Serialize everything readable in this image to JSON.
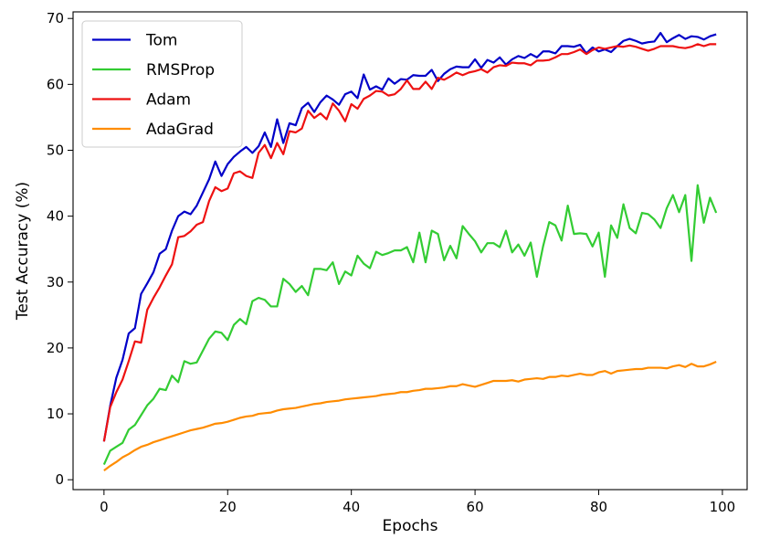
{
  "chart_data": {
    "type": "line",
    "title": "",
    "xlabel": "Epochs",
    "ylabel": "Test Accuracy (%)",
    "xlim": [
      -5,
      104
    ],
    "ylim": [
      -1.5,
      71
    ],
    "xticks": [
      0,
      20,
      40,
      60,
      80,
      100
    ],
    "yticks": [
      0,
      10,
      20,
      30,
      40,
      50,
      60,
      70
    ],
    "grid": false,
    "legend_position": "top-left",
    "series": [
      {
        "name": "Tom",
        "color": "#0000c8",
        "values": [
          5.8,
          11.2,
          15.5,
          18.2,
          22.2,
          23.0,
          28.2,
          29.8,
          31.5,
          34.3,
          35.0,
          37.8,
          40.0,
          40.7,
          40.3,
          41.6,
          43.6,
          45.6,
          48.3,
          46.1,
          47.9,
          49.0,
          49.8,
          50.5,
          49.6,
          50.6,
          52.7,
          50.5,
          54.7,
          51.1,
          54.1,
          53.8,
          56.4,
          57.2,
          55.8,
          57.3,
          58.3,
          57.7,
          56.9,
          58.5,
          58.9,
          57.9,
          61.5,
          59.2,
          59.7,
          59.2,
          60.9,
          60.1,
          60.8,
          60.7,
          61.4,
          61.3,
          61.3,
          62.2,
          60.5,
          61.6,
          62.3,
          62.7,
          62.6,
          62.6,
          63.8,
          62.5,
          63.7,
          63.3,
          64.1,
          63.0,
          63.8,
          64.3,
          64.0,
          64.6,
          64.1,
          65.0,
          65.0,
          64.7,
          65.8,
          65.8,
          65.7,
          66.0,
          64.7,
          65.6,
          65.0,
          65.3,
          64.9,
          65.8,
          66.6,
          66.9,
          66.6,
          66.2,
          66.4,
          66.5,
          67.8,
          66.4,
          67.0,
          67.5,
          66.9,
          67.3,
          67.2,
          66.8,
          67.3,
          67.6
        ]
      },
      {
        "name": "RMSProp",
        "color": "#33cc33",
        "values": [
          2.3,
          4.4,
          5.0,
          5.6,
          7.6,
          8.3,
          9.8,
          11.3,
          12.3,
          13.8,
          13.6,
          15.8,
          14.8,
          18.0,
          17.6,
          17.8,
          19.6,
          21.4,
          22.5,
          22.3,
          21.2,
          23.5,
          24.4,
          23.6,
          27.1,
          27.6,
          27.3,
          26.3,
          26.3,
          30.5,
          29.7,
          28.5,
          29.4,
          28.0,
          32.0,
          32.0,
          31.8,
          33.0,
          29.7,
          31.6,
          31.0,
          34.0,
          32.8,
          32.1,
          34.6,
          34.1,
          34.4,
          34.8,
          34.8,
          35.3,
          33.0,
          37.5,
          33.0,
          37.8,
          37.3,
          33.3,
          35.5,
          33.6,
          38.5,
          37.3,
          36.2,
          34.5,
          35.9,
          35.9,
          35.3,
          37.8,
          34.5,
          35.7,
          34.0,
          36.0,
          30.8,
          35.4,
          39.1,
          38.6,
          36.3,
          41.6,
          37.3,
          37.4,
          37.3,
          35.4,
          37.5,
          30.8,
          38.6,
          36.7,
          41.8,
          38.2,
          37.4,
          40.5,
          40.3,
          39.5,
          38.2,
          41.2,
          43.2,
          40.6,
          43.2,
          33.2,
          44.7,
          39.0,
          42.8,
          40.5
        ]
      },
      {
        "name": "Adam",
        "color": "#ee1111",
        "values": [
          5.8,
          11.0,
          13.3,
          15.2,
          18.0,
          21.0,
          20.8,
          25.8,
          27.6,
          29.2,
          31.0,
          32.7,
          36.8,
          37.0,
          37.7,
          38.7,
          39.1,
          42.3,
          44.4,
          43.8,
          44.2,
          46.5,
          46.8,
          46.1,
          45.8,
          49.6,
          50.8,
          48.8,
          51.1,
          49.4,
          52.9,
          52.7,
          53.3,
          56.0,
          54.9,
          55.6,
          54.7,
          57.1,
          56.0,
          54.4,
          57.0,
          56.3,
          57.8,
          58.3,
          59.0,
          58.9,
          58.3,
          58.5,
          59.3,
          60.6,
          59.3,
          59.3,
          60.4,
          59.3,
          61.0,
          60.7,
          61.2,
          61.8,
          61.4,
          61.8,
          62.0,
          62.3,
          61.8,
          62.6,
          62.9,
          62.8,
          63.3,
          63.2,
          63.2,
          62.9,
          63.6,
          63.6,
          63.7,
          64.1,
          64.6,
          64.6,
          64.9,
          65.3,
          64.6,
          65.2,
          65.6,
          65.4,
          65.6,
          65.8,
          65.7,
          65.9,
          65.7,
          65.4,
          65.1,
          65.4,
          65.8,
          65.8,
          65.8,
          65.6,
          65.5,
          65.7,
          66.1,
          65.8,
          66.1,
          66.1
        ]
      },
      {
        "name": "AdaGrad",
        "color": "#ff8c00",
        "values": [
          1.4,
          2.1,
          2.7,
          3.4,
          3.9,
          4.5,
          5.0,
          5.3,
          5.7,
          6.0,
          6.3,
          6.6,
          6.9,
          7.2,
          7.5,
          7.7,
          7.9,
          8.2,
          8.5,
          8.6,
          8.8,
          9.1,
          9.4,
          9.6,
          9.7,
          10.0,
          10.1,
          10.2,
          10.5,
          10.7,
          10.8,
          10.9,
          11.1,
          11.3,
          11.5,
          11.6,
          11.8,
          11.9,
          12.0,
          12.2,
          12.3,
          12.4,
          12.5,
          12.6,
          12.7,
          12.9,
          13.0,
          13.1,
          13.3,
          13.3,
          13.5,
          13.6,
          13.8,
          13.8,
          13.9,
          14.0,
          14.2,
          14.2,
          14.5,
          14.3,
          14.1,
          14.4,
          14.7,
          15.0,
          15.0,
          15.0,
          15.1,
          14.9,
          15.2,
          15.3,
          15.4,
          15.3,
          15.6,
          15.6,
          15.8,
          15.7,
          15.9,
          16.1,
          15.9,
          15.9,
          16.3,
          16.5,
          16.1,
          16.5,
          16.6,
          16.7,
          16.8,
          16.8,
          17.0,
          17.0,
          17.0,
          16.9,
          17.2,
          17.4,
          17.1,
          17.6,
          17.2,
          17.2,
          17.5,
          17.9
        ]
      }
    ]
  }
}
